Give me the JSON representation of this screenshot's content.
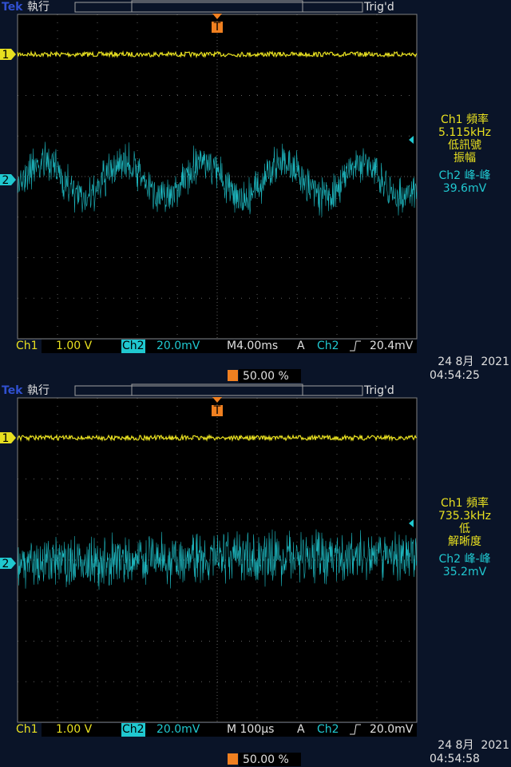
{
  "screens": [
    {
      "brand": "Tek",
      "status": "執行",
      "trig_state": "Trig'd",
      "ch1_marker": "1",
      "ch2_marker": "2",
      "trig_marker": "T",
      "ch1_label": "Ch1",
      "ch1_scale": "1.00 V",
      "ch2_label": "Ch2",
      "ch2_scale": "20.0mV",
      "timebase": "M4.00ms",
      "acq": "A",
      "trig_source": "Ch2",
      "trig_level": "20.4mV",
      "trig_pos": "50.00 %",
      "date": "24 8月  2021",
      "time": "04:54:25",
      "ch1_measure": [
        "Ch1 頻率",
        "5.115kHz",
        "低訊號",
        "振幅"
      ],
      "ch2_measure": [
        "Ch2 峰-峰",
        "39.6mV"
      ]
    },
    {
      "brand": "Tek",
      "status": "執行",
      "trig_state": "Trig'd",
      "ch1_marker": "1",
      "ch2_marker": "2",
      "trig_marker": "T",
      "ch1_label": "Ch1",
      "ch1_scale": "1.00 V",
      "ch2_label": "Ch2",
      "ch2_scale": "20.0mV",
      "timebase": "M 100µs",
      "acq": "A",
      "trig_source": "Ch2",
      "trig_level": "20.0mV",
      "trig_pos": "50.00 %",
      "date": "24 8月  2021",
      "time": "04:54:58",
      "ch1_measure": [
        "Ch1 頻率",
        "735.3kHz",
        "低",
        "解晰度"
      ],
      "ch2_measure": [
        "Ch2 峰-峰",
        "35.2mV"
      ]
    }
  ]
}
